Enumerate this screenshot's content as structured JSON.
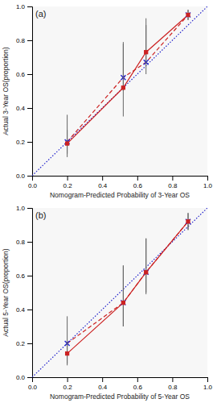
{
  "chart_data": [
    {
      "type": "line",
      "title": "(a)",
      "x_label": "Nomogram-Predicted Probability of 3-Year OS",
      "y_label": "Actual 3-Year OS(proportion)",
      "xlim": [
        0.0,
        1.0
      ],
      "ylim": [
        0.0,
        1.0
      ],
      "xticks": [
        {
          "value": 0.0,
          "label": "0.0"
        },
        0.2,
        0.4,
        0.6,
        0.8,
        {
          "value": 1.0,
          "label": "1.0"
        }
      ],
      "yticks": [
        {
          "value": 0.0,
          "label": "0.0"
        },
        0.2,
        0.4,
        0.6,
        0.8,
        {
          "value": 1.0,
          "label": "1.0"
        }
      ],
      "grid": false,
      "series": [
        {
          "type": "line",
          "color": "#2222cc",
          "line_style": "dotted",
          "marker": "none",
          "x": [
            0,
            1
          ],
          "values": [
            0,
            1
          ]
        },
        {
          "type": "line",
          "color": "#cc2222",
          "line_style": "dashed",
          "marker": "none",
          "x": [
            0.2,
            0.52,
            0.65,
            0.89
          ],
          "values": [
            0.2,
            0.58,
            0.67,
            0.95
          ]
        },
        {
          "type": "scatter",
          "color": "#2222cc",
          "marker": "x",
          "x": [
            0.2,
            0.52,
            0.65,
            0.89
          ],
          "values": [
            0.2,
            0.58,
            0.67,
            0.95
          ],
          "yerr_lo": [
            0.07,
            0.08,
            0.07,
            0.03
          ],
          "yerr_hi": [
            0.16,
            0.2,
            0.22,
            0.03
          ]
        },
        {
          "type": "line",
          "color": "#cc2222",
          "line_style": "solid",
          "marker": "square",
          "x": [
            0.2,
            0.52,
            0.65,
            0.89
          ],
          "values": [
            0.19,
            0.52,
            0.73,
            0.95
          ],
          "yerr_lo": [
            0.08,
            0.17,
            0.07,
            0.03
          ],
          "yerr_hi": [
            0.08,
            0.27,
            0.2,
            0.03
          ]
        }
      ]
    },
    {
      "type": "line",
      "title": "(b)",
      "x_label": "Nomogram-Predicted Probability of 5-Year OS",
      "y_label": "Actual 5-Year OS(proportion)",
      "xlim": [
        0.0,
        1.0
      ],
      "ylim": [
        0.0,
        1.0
      ],
      "xticks": [
        {
          "value": 0.0,
          "label": "0.0"
        },
        0.2,
        0.4,
        0.6,
        0.8,
        {
          "value": 1.0,
          "label": "1.0"
        }
      ],
      "yticks": [
        {
          "value": 0.0,
          "label": "0.0"
        },
        0.2,
        0.4,
        0.6,
        0.8,
        {
          "value": 1.0,
          "label": "1.0"
        }
      ],
      "grid": false,
      "series": [
        {
          "type": "line",
          "color": "#2222cc",
          "line_style": "dotted",
          "marker": "none",
          "x": [
            0,
            1
          ],
          "values": [
            0,
            1
          ]
        },
        {
          "type": "line",
          "color": "#cc2222",
          "line_style": "dashed",
          "marker": "none",
          "x": [
            0.2,
            0.52,
            0.65,
            0.89
          ],
          "values": [
            0.2,
            0.44,
            0.62,
            0.92
          ]
        },
        {
          "type": "scatter",
          "color": "#2222cc",
          "marker": "x",
          "x": [
            0.2,
            0.52,
            0.65,
            0.89
          ],
          "values": [
            0.2,
            0.44,
            0.62,
            0.92
          ],
          "yerr_lo": [
            0.12,
            0.14,
            0.12,
            0.05
          ],
          "yerr_hi": [
            0.16,
            0.22,
            0.2,
            0.05
          ]
        },
        {
          "type": "line",
          "color": "#cc2222",
          "line_style": "solid",
          "marker": "square",
          "x": [
            0.2,
            0.52,
            0.65,
            0.89
          ],
          "values": [
            0.14,
            0.44,
            0.62,
            0.92
          ],
          "yerr_lo": [
            0.07,
            0.14,
            0.13,
            0.05
          ],
          "yerr_hi": [
            0.07,
            0.22,
            0.2,
            0.05
          ]
        }
      ]
    }
  ]
}
